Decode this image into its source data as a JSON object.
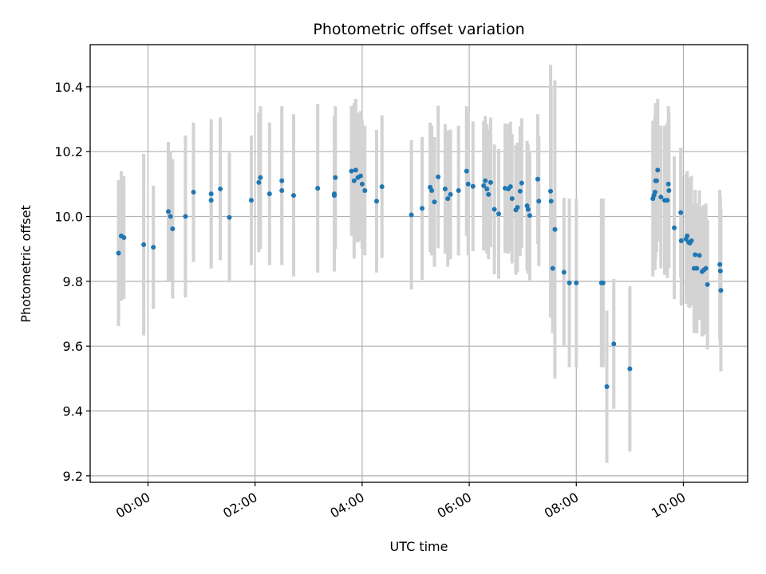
{
  "chart_data": {
    "type": "scatter",
    "title": "Photometric offset variation",
    "xlabel": "UTC time",
    "ylabel": "Photometric offset",
    "x_unit": "hours UTC",
    "xlim": [
      -1.08,
      11.2
    ],
    "ylim": [
      9.18,
      10.53
    ],
    "x_ticks": [
      {
        "value": 0,
        "label": "00:00"
      },
      {
        "value": 2,
        "label": "02:00"
      },
      {
        "value": 4,
        "label": "04:00"
      },
      {
        "value": 6,
        "label": "06:00"
      },
      {
        "value": 8,
        "label": "08:00"
      },
      {
        "value": 10,
        "label": "10:00"
      }
    ],
    "y_ticks": [
      {
        "value": 9.2,
        "label": "9.2"
      },
      {
        "value": 9.4,
        "label": "9.4"
      },
      {
        "value": 9.6,
        "label": "9.6"
      },
      {
        "value": 9.8,
        "label": "9.8"
      },
      {
        "value": 10.0,
        "label": "10.0"
      },
      {
        "value": 10.2,
        "label": "10.2"
      },
      {
        "value": 10.4,
        "label": "10.4"
      }
    ],
    "grid": true,
    "legend": "none",
    "colors": {
      "point": "#1f77b4",
      "errorbar": "#d3d3d3",
      "grid": "#b0b0b0",
      "axis": "#000000"
    },
    "series": [
      {
        "points": [
          [
            -0.55,
            9.887,
            0.225
          ],
          [
            -0.5,
            9.94,
            0.2
          ],
          [
            -0.45,
            9.935,
            0.19
          ],
          [
            -0.08,
            9.913,
            0.28
          ],
          [
            0.1,
            9.905,
            0.19
          ],
          [
            0.38,
            10.015,
            0.215
          ],
          [
            0.42,
            10.0,
            0.2
          ],
          [
            0.46,
            9.962,
            0.215
          ],
          [
            0.7,
            10.0,
            0.25
          ],
          [
            0.85,
            10.075,
            0.215
          ],
          [
            1.18,
            10.07,
            0.23
          ],
          [
            1.18,
            10.05,
            0.21
          ],
          [
            1.35,
            10.085,
            0.22
          ],
          [
            1.52,
            9.997,
            0.2
          ],
          [
            1.93,
            10.05,
            0.2
          ],
          [
            2.07,
            10.105,
            0.215
          ],
          [
            2.1,
            10.12,
            0.22
          ],
          [
            2.27,
            10.07,
            0.22
          ],
          [
            2.5,
            10.11,
            0.23
          ],
          [
            2.5,
            10.08,
            0.23
          ],
          [
            2.72,
            10.065,
            0.25
          ],
          [
            3.17,
            10.087,
            0.26
          ],
          [
            3.48,
            10.07,
            0.24
          ],
          [
            3.48,
            10.065,
            0.2
          ],
          [
            3.5,
            10.12,
            0.22
          ],
          [
            3.8,
            10.14,
            0.2
          ],
          [
            3.85,
            10.11,
            0.24
          ],
          [
            3.88,
            10.143,
            0.22
          ],
          [
            3.92,
            10.12,
            0.2
          ],
          [
            3.97,
            10.125,
            0.2
          ],
          [
            4.0,
            10.1,
            0.2
          ],
          [
            4.05,
            10.08,
            0.2
          ],
          [
            4.27,
            10.047,
            0.22
          ],
          [
            4.37,
            10.092,
            0.22
          ],
          [
            4.92,
            10.005,
            0.23
          ],
          [
            5.12,
            10.025,
            0.22
          ],
          [
            5.27,
            10.09,
            0.2
          ],
          [
            5.3,
            10.08,
            0.2
          ],
          [
            5.35,
            10.045,
            0.2
          ],
          [
            5.42,
            10.122,
            0.22
          ],
          [
            5.55,
            10.085,
            0.2
          ],
          [
            5.6,
            10.055,
            0.21
          ],
          [
            5.65,
            10.068,
            0.2
          ],
          [
            5.8,
            10.08,
            0.2
          ],
          [
            5.95,
            10.14,
            0.2
          ],
          [
            5.98,
            10.1,
            0.22
          ],
          [
            6.07,
            10.093,
            0.2
          ],
          [
            6.27,
            10.095,
            0.2
          ],
          [
            6.3,
            10.11,
            0.2
          ],
          [
            6.33,
            10.085,
            0.2
          ],
          [
            6.36,
            10.068,
            0.2
          ],
          [
            6.4,
            10.105,
            0.2
          ],
          [
            6.47,
            10.022,
            0.2
          ],
          [
            6.55,
            10.008,
            0.2
          ],
          [
            6.67,
            10.087,
            0.2
          ],
          [
            6.73,
            10.085,
            0.2
          ],
          [
            6.77,
            10.092,
            0.2
          ],
          [
            6.8,
            10.055,
            0.2
          ],
          [
            6.87,
            10.02,
            0.2
          ],
          [
            6.9,
            10.028,
            0.2
          ],
          [
            6.95,
            10.078,
            0.2
          ],
          [
            6.98,
            10.103,
            0.2
          ],
          [
            7.08,
            10.033,
            0.2
          ],
          [
            7.1,
            10.022,
            0.2
          ],
          [
            7.13,
            10.003,
            0.2
          ],
          [
            7.28,
            10.115,
            0.2
          ],
          [
            7.3,
            10.047,
            0.2
          ],
          [
            7.52,
            10.078,
            0.39
          ],
          [
            7.53,
            10.047,
            0.35
          ],
          [
            7.56,
            9.84,
            0.2
          ],
          [
            7.6,
            9.96,
            0.46
          ],
          [
            7.77,
            9.828,
            0.23
          ],
          [
            7.87,
            9.795,
            0.26
          ],
          [
            8.0,
            9.795,
            0.26
          ],
          [
            8.47,
            9.795,
            0.26
          ],
          [
            8.5,
            9.795,
            0.26
          ],
          [
            8.57,
            9.475,
            0.235
          ],
          [
            8.7,
            9.607,
            0.2
          ],
          [
            9.0,
            9.53,
            0.255
          ],
          [
            9.43,
            10.055,
            0.24
          ],
          [
            9.45,
            10.065,
            0.23
          ],
          [
            9.47,
            10.075,
            0.24
          ],
          [
            9.48,
            10.11,
            0.24
          ],
          [
            9.5,
            10.11,
            0.22
          ],
          [
            9.52,
            10.143,
            0.22
          ],
          [
            9.58,
            10.06,
            0.22
          ],
          [
            9.65,
            10.05,
            0.23
          ],
          [
            9.7,
            10.05,
            0.24
          ],
          [
            9.72,
            10.1,
            0.24
          ],
          [
            9.73,
            10.08,
            0.24
          ],
          [
            9.83,
            9.965,
            0.22
          ],
          [
            9.95,
            10.012,
            0.2
          ],
          [
            9.96,
            9.925,
            0.2
          ],
          [
            10.05,
            9.93,
            0.2
          ],
          [
            10.07,
            9.94,
            0.2
          ],
          [
            10.1,
            9.92,
            0.2
          ],
          [
            10.12,
            9.918,
            0.2
          ],
          [
            10.15,
            9.925,
            0.2
          ],
          [
            10.2,
            9.84,
            0.2
          ],
          [
            10.22,
            9.882,
            0.2
          ],
          [
            10.25,
            9.84,
            0.2
          ],
          [
            10.3,
            9.88,
            0.2
          ],
          [
            10.35,
            9.83,
            0.2
          ],
          [
            10.38,
            9.835,
            0.2
          ],
          [
            10.42,
            9.84,
            0.2
          ],
          [
            10.45,
            9.79,
            0.2
          ],
          [
            10.68,
            9.852,
            0.23
          ],
          [
            10.69,
            9.832,
            0.23
          ],
          [
            10.7,
            9.772,
            0.25
          ]
        ]
      }
    ]
  }
}
